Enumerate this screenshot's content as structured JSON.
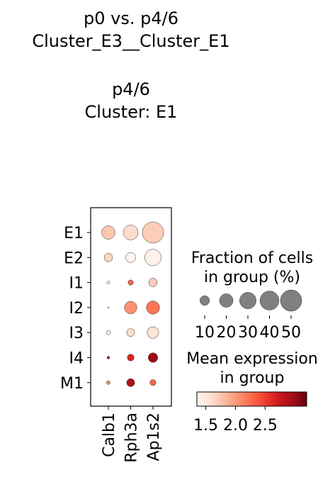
{
  "title": {
    "line1": "p0 vs. p4/6",
    "line2": "Cluster_E3__Cluster_E1",
    "line3": "p4/6",
    "line4": "Cluster: E1"
  },
  "chart_data": {
    "type": "dotplot",
    "groups": [
      "E1",
      "E2",
      "I1",
      "I2",
      "I3",
      "I4",
      "M1"
    ],
    "genes": [
      "Calb1",
      "Rph3a",
      "Ap1s2"
    ],
    "fraction": [
      [
        20,
        24,
        50
      ],
      [
        8,
        11,
        30
      ],
      [
        1,
        3,
        8
      ],
      [
        0.3,
        17,
        19
      ],
      [
        2,
        7,
        15
      ],
      [
        0.8,
        5,
        10
      ],
      [
        1.5,
        7,
        4
      ]
    ],
    "expression": [
      [
        1.75,
        1.6,
        1.7
      ],
      [
        1.65,
        1.35,
        1.4
      ],
      [
        1.45,
        2.3,
        1.7
      ],
      [
        1.35,
        2.05,
        2.2
      ],
      [
        1.4,
        1.6,
        1.55
      ],
      [
        2.8,
        2.65,
        3.0
      ],
      [
        2.1,
        2.9,
        2.3
      ]
    ],
    "size_legend": {
      "title_line1": "Fraction of cells",
      "title_line2": "in group (%)",
      "values": [
        10,
        20,
        30,
        40,
        50
      ],
      "tick_labels": [
        "10",
        "20",
        "30",
        "40",
        "50"
      ]
    },
    "color_legend": {
      "title_line1": "Mean expression",
      "title_line2": "in group",
      "range": [
        1.35,
        3.2
      ],
      "ticks": [
        1.5,
        2.0,
        2.5
      ],
      "tick_labels": [
        "1.5",
        "2.0",
        "2.5"
      ],
      "colormap": "Reds"
    }
  }
}
